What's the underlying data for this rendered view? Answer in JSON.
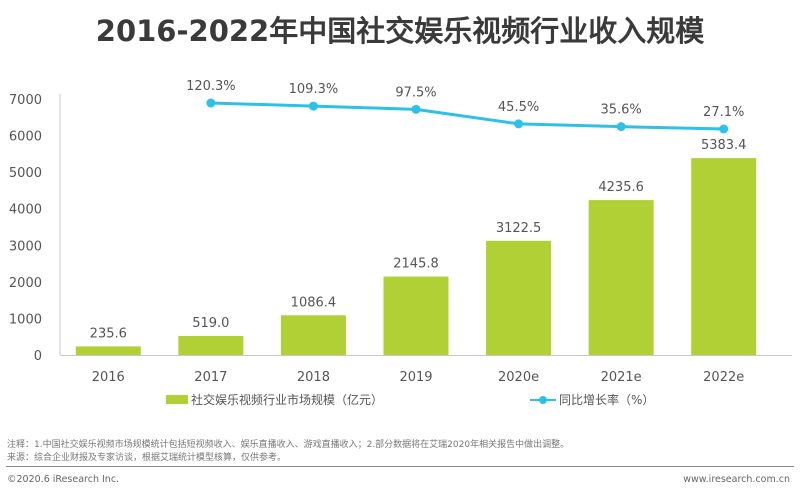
{
  "title": "2016-2022年中国社交娱乐视频行业收入规模",
  "chart_data": {
    "type": "bar",
    "title": "2016-2022年中国社交娱乐视频行业收入规模",
    "categories": [
      "2016",
      "2017",
      "2018",
      "2019",
      "2020e",
      "2021e",
      "2022e"
    ],
    "series": [
      {
        "name": "社交娱乐视频行业市场规模（亿元）",
        "type": "bar",
        "color": "#b1d035",
        "values": [
          235.6,
          519.0,
          1086.4,
          2145.8,
          3122.5,
          4235.6,
          5383.4
        ],
        "labels": [
          "235.6",
          "519.0",
          "1086.4",
          "2145.8",
          "3122.5",
          "4235.6",
          "5383.4"
        ]
      },
      {
        "name": "同比增长率（%）",
        "type": "line",
        "color": "#2ec1e6",
        "x": [
          "2017",
          "2018",
          "2019",
          "2020e",
          "2021e",
          "2022e"
        ],
        "values": [
          120.3,
          109.3,
          97.5,
          45.5,
          35.6,
          27.1
        ],
        "labels": [
          "120.3%",
          "109.3%",
          "97.5%",
          "45.5%",
          "35.6%",
          "27.1%"
        ]
      }
    ],
    "y_ticks": [
      "0",
      "1000",
      "2000",
      "3000",
      "4000",
      "5000",
      "6000",
      "7000"
    ],
    "ylim": [
      0,
      7000
    ],
    "xlabel": "",
    "ylabel": "",
    "grid": false,
    "legend": "bottom"
  },
  "legend": {
    "bar_label": "社交娱乐视频行业市场规模（亿元）",
    "line_label": "同比增长率（%）"
  },
  "notes": {
    "note": "注释：1.中国社交娱乐视频市场规模统计包括短视频收入、娱乐直播收入、游戏直播收入；2.部分数据将在艾瑞2020年相关报告中做出调整。",
    "source": "来源：综合企业财报及专家访谈，根据艾瑞统计模型核算，仅供参考。"
  },
  "footer": {
    "copyright": "©2020.6 iResearch Inc.",
    "website": "www.iresearch.com.cn"
  }
}
